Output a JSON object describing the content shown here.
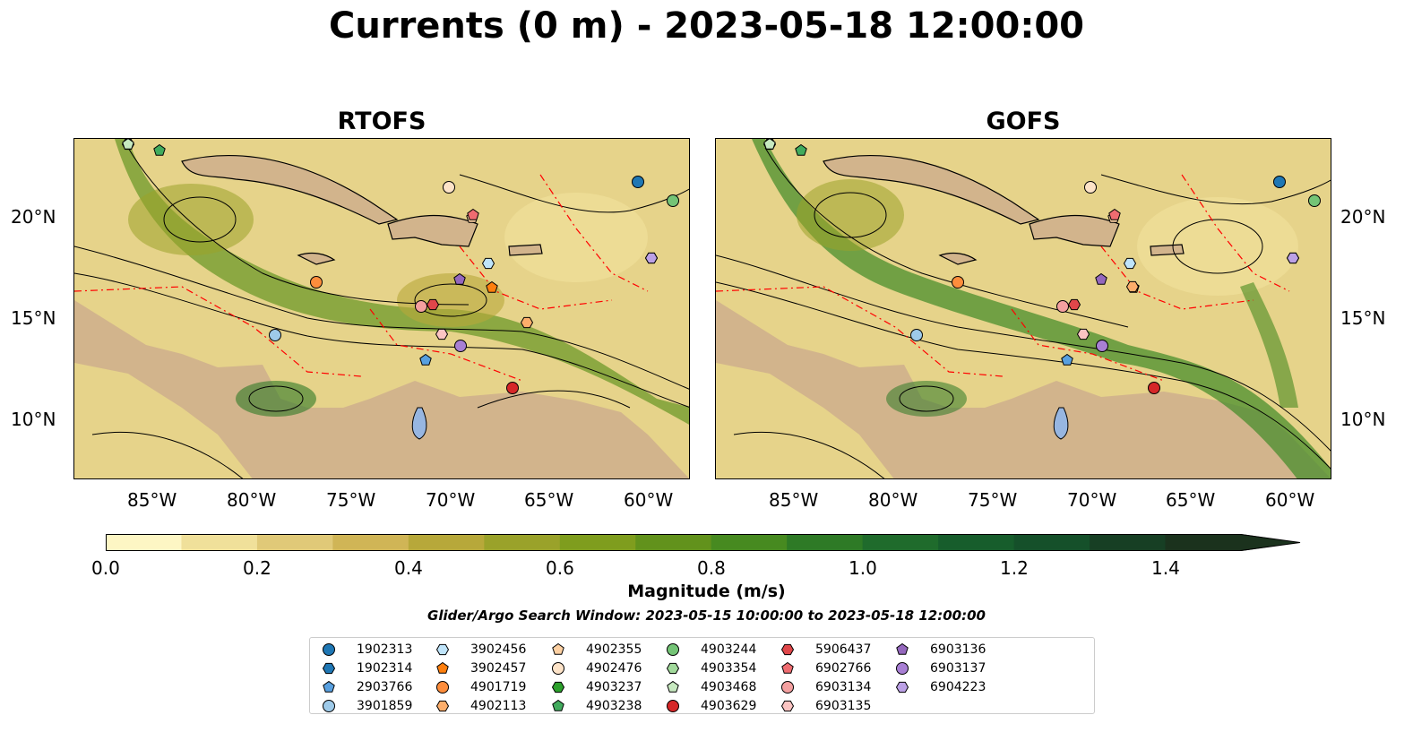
{
  "title": "Currents (0 m) - 2023-05-18 12:00:00",
  "panels": [
    {
      "name": "RTOFS"
    },
    {
      "name": "GOFS"
    }
  ],
  "lon_ticks": [
    "85°W",
    "80°W",
    "75°W",
    "70°W",
    "65°W",
    "60°W"
  ],
  "lat_ticks": [
    "20°N",
    "15°N",
    "10°N"
  ],
  "colorbar": {
    "label": "Magnitude (m/s)",
    "ticks": [
      "0.0",
      "0.2",
      "0.4",
      "0.6",
      "0.8",
      "1.0",
      "1.2",
      "1.4"
    ],
    "range": [
      0,
      1.5
    ],
    "extend": "max",
    "colors": [
      "#fdf6c4",
      "#f0e09a",
      "#e0c978",
      "#d0b556",
      "#b7a83a",
      "#9aa22a",
      "#7f9d1e",
      "#62921c",
      "#478a20",
      "#2e7a26",
      "#1f6b2c",
      "#175d2c",
      "#15502a",
      "#173f24",
      "#1b321d"
    ]
  },
  "search_window": "Glider/Argo Search Window: 2023-05-15 10:00:00 to 2023-05-18 12:00:00",
  "colors": {
    "land": "#d2b48c",
    "lakes": "#97b6e1",
    "rivers": "#97b6e1",
    "eez": "#ff0000",
    "streamlines": "#000000"
  },
  "floats": [
    {
      "id": "1902313",
      "color": "#1f77b4",
      "marker": "circle"
    },
    {
      "id": "1902314",
      "color": "#1f77b4",
      "marker": "hexagon"
    },
    {
      "id": "2903766",
      "color": "#58a0e0",
      "marker": "pentagon"
    },
    {
      "id": "3901859",
      "color": "#9ecae9",
      "marker": "circle"
    },
    {
      "id": "3902456",
      "color": "#bfe4fa",
      "marker": "hexagon"
    },
    {
      "id": "3902457",
      "color": "#ff7f0e",
      "marker": "pentagon"
    },
    {
      "id": "4901719",
      "color": "#fd8d3c",
      "marker": "circle"
    },
    {
      "id": "4902113",
      "color": "#fdae6b",
      "marker": "hexagon"
    },
    {
      "id": "4902355",
      "color": "#fdd0a2",
      "marker": "pentagon"
    },
    {
      "id": "4902476",
      "color": "#fde3c8",
      "marker": "circle"
    },
    {
      "id": "4903237",
      "color": "#2ca02c",
      "marker": "hexagon"
    },
    {
      "id": "4903238",
      "color": "#41ab5d",
      "marker": "pentagon"
    },
    {
      "id": "4903244",
      "color": "#74c476",
      "marker": "circle"
    },
    {
      "id": "4903354",
      "color": "#a1d99b",
      "marker": "hexagon"
    },
    {
      "id": "4903468",
      "color": "#c7e9c0",
      "marker": "pentagon"
    },
    {
      "id": "4903629",
      "color": "#d62728",
      "marker": "circle"
    },
    {
      "id": "5906437",
      "color": "#e0474a",
      "marker": "hexagon"
    },
    {
      "id": "6902766",
      "color": "#ef6c70",
      "marker": "pentagon"
    },
    {
      "id": "6903134",
      "color": "#f4a0a0",
      "marker": "circle"
    },
    {
      "id": "6903135",
      "color": "#fbc4c2",
      "marker": "hexagon"
    },
    {
      "id": "6903136",
      "color": "#9467bd",
      "marker": "pentagon"
    },
    {
      "id": "6903137",
      "color": "#a87fd4",
      "marker": "circle"
    },
    {
      "id": "6904223",
      "color": "#bca1e6",
      "marker": "hexagon"
    }
  ]
}
